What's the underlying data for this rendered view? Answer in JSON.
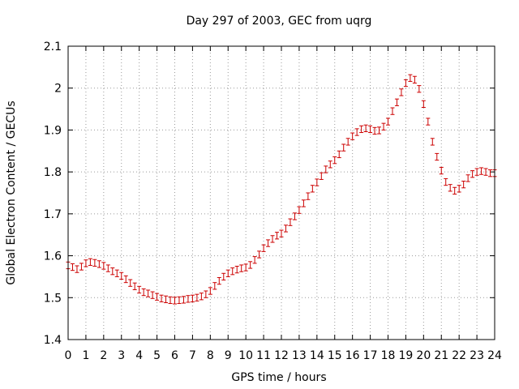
{
  "chart_data": {
    "type": "scatter",
    "title": "Day 297 of 2003, GEC from uqrg",
    "xlabel": "GPS time / hours",
    "ylabel": "Global Electron Content / GECUs",
    "xlim": [
      0,
      24
    ],
    "ylim": [
      1.4,
      2.1
    ],
    "xticks": [
      0,
      1,
      2,
      3,
      4,
      5,
      6,
      7,
      8,
      9,
      10,
      11,
      12,
      13,
      14,
      15,
      16,
      17,
      18,
      19,
      20,
      21,
      22,
      23,
      24
    ],
    "yticks": [
      1.4,
      1.5,
      1.6,
      1.7,
      1.8,
      1.9,
      2.0,
      2.1
    ],
    "ytick_labels": [
      "1.4",
      "1.5",
      "1.6",
      "1.7",
      "1.8",
      "1.9",
      "2",
      "2.1"
    ],
    "grid": true,
    "error_bars": true,
    "error": 0.008,
    "series_color": "#cc0000",
    "x": [
      0,
      0.25,
      0.5,
      0.75,
      1,
      1.25,
      1.5,
      1.75,
      2,
      2.25,
      2.5,
      2.75,
      3,
      3.25,
      3.5,
      3.75,
      4,
      4.25,
      4.5,
      4.75,
      5,
      5.25,
      5.5,
      5.75,
      6,
      6.25,
      6.5,
      6.75,
      7,
      7.25,
      7.5,
      7.75,
      8,
      8.25,
      8.5,
      8.75,
      9,
      9.25,
      9.5,
      9.75,
      10,
      10.25,
      10.5,
      10.75,
      11,
      11.25,
      11.5,
      11.75,
      12,
      12.25,
      12.5,
      12.75,
      13,
      13.25,
      13.5,
      13.75,
      14,
      14.25,
      14.5,
      14.75,
      15,
      15.25,
      15.5,
      15.75,
      16,
      16.25,
      16.5,
      16.75,
      17,
      17.25,
      17.5,
      17.75,
      18,
      18.25,
      18.5,
      18.75,
      19,
      19.25,
      19.5,
      19.75,
      20,
      20.25,
      20.5,
      20.75,
      21,
      21.25,
      21.5,
      21.75,
      22,
      22.25,
      22.5,
      22.75,
      23,
      23.25,
      23.5,
      23.75,
      24
    ],
    "y": [
      1.577,
      1.573,
      1.568,
      1.574,
      1.582,
      1.585,
      1.583,
      1.58,
      1.576,
      1.57,
      1.563,
      1.558,
      1.552,
      1.544,
      1.535,
      1.527,
      1.519,
      1.513,
      1.51,
      1.506,
      1.502,
      1.498,
      1.496,
      1.494,
      1.493,
      1.494,
      1.495,
      1.497,
      1.498,
      1.5,
      1.503,
      1.508,
      1.516,
      1.528,
      1.54,
      1.55,
      1.558,
      1.563,
      1.567,
      1.57,
      1.572,
      1.578,
      1.59,
      1.603,
      1.618,
      1.63,
      1.64,
      1.648,
      1.653,
      1.665,
      1.68,
      1.694,
      1.709,
      1.725,
      1.742,
      1.76,
      1.775,
      1.79,
      1.806,
      1.818,
      1.828,
      1.842,
      1.858,
      1.872,
      1.885,
      1.895,
      1.902,
      1.904,
      1.902,
      1.898,
      1.899,
      1.908,
      1.92,
      1.945,
      1.966,
      1.99,
      2.012,
      2.024,
      2.02,
      1.998,
      1.962,
      1.92,
      1.872,
      1.836,
      1.803,
      1.776,
      1.762,
      1.755,
      1.76,
      1.77,
      1.785,
      1.795,
      1.8,
      1.802,
      1.8,
      1.797,
      1.797
    ]
  }
}
